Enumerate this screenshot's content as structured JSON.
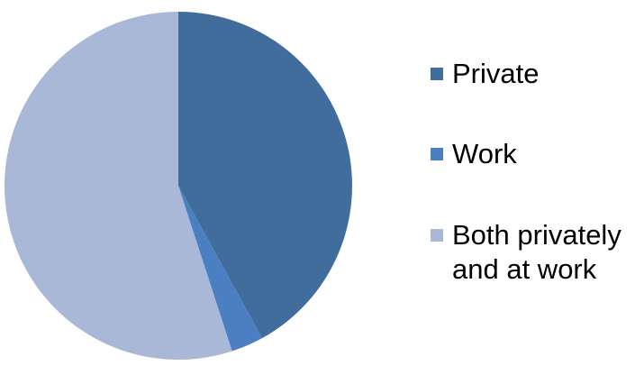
{
  "chart_data": {
    "type": "pie",
    "title": "",
    "categories": [
      "Private",
      "Work",
      "Both privately\nand at work"
    ],
    "values": [
      42,
      3,
      55
    ],
    "colors": [
      "#416d9d",
      "#4a7fc1",
      "#aab8d8"
    ],
    "start_angle_deg": 0,
    "direction": "clockwise",
    "legend_position": "right"
  }
}
